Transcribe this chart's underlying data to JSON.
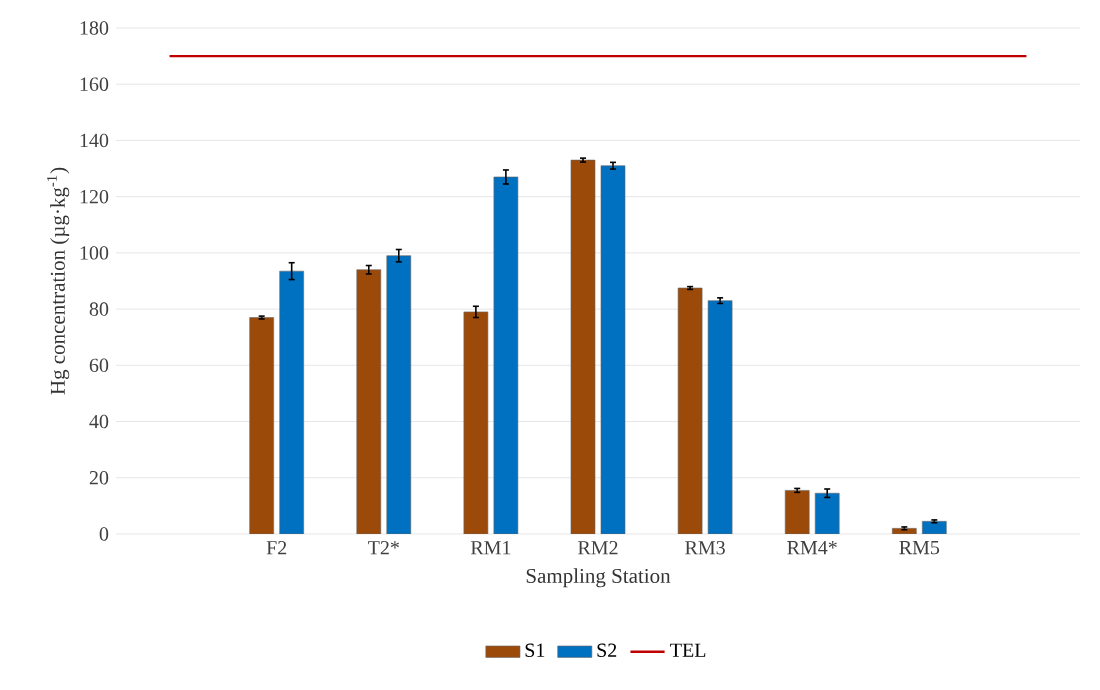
{
  "chart_data": {
    "type": "bar",
    "xlabel": "Sampling Station",
    "ylabel": "Hg concentration (µg·kg$^{-1}$)",
    "categories": [
      null,
      "F2",
      "T2*",
      "RM1",
      "RM2",
      "RM3",
      "RM4*",
      "RM5",
      null
    ],
    "series": [
      {
        "name": "S1",
        "color": "#9c4a0a",
        "values": [
          null,
          77,
          94,
          79,
          133,
          87.5,
          15.5,
          2,
          null
        ],
        "errors": [
          null,
          0.5,
          1.5,
          2,
          0.7,
          0.5,
          0.7,
          0.5,
          null
        ]
      },
      {
        "name": "S2",
        "color": "#0070c0",
        "values": [
          null,
          93.5,
          99,
          127,
          131,
          83,
          14.5,
          4.5,
          null
        ],
        "errors": [
          null,
          3,
          2.2,
          2.5,
          1.2,
          1,
          1.5,
          0.5,
          null
        ]
      },
      {
        "name": "TEL",
        "type": "line",
        "color": "#c00000",
        "values": [
          170,
          170,
          170,
          170,
          170,
          170,
          170,
          170,
          170
        ]
      }
    ],
    "ylim": [
      0,
      180
    ],
    "yticks": [
      0,
      20,
      40,
      60,
      80,
      100,
      120,
      140,
      160,
      180
    ],
    "grid": "y",
    "legend": "bottom"
  }
}
